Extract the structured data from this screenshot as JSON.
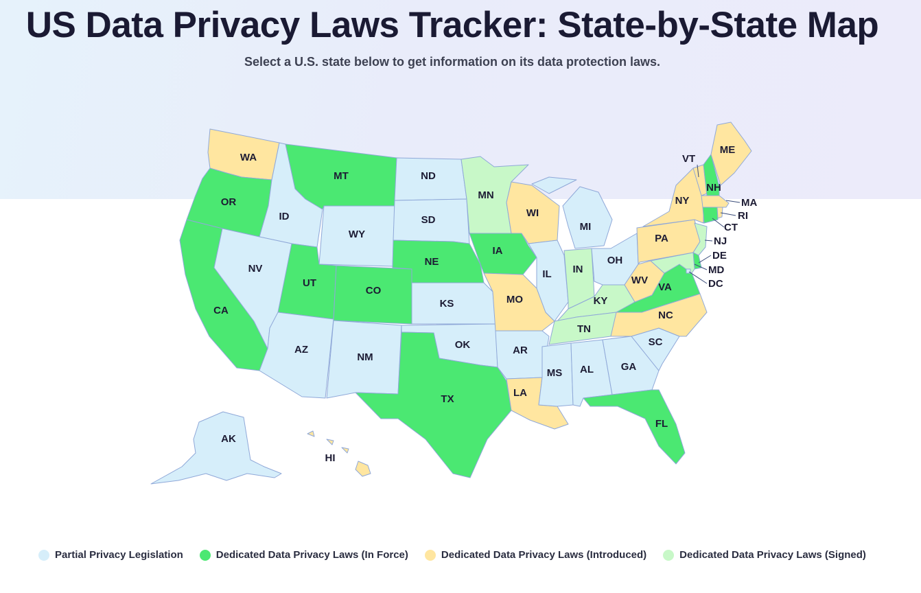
{
  "page": {
    "title": "US Data Privacy Laws Tracker: State-by-State Map",
    "subtitle": "Select a U.S. state below to get information on its data protection laws."
  },
  "colors": {
    "partial": "#d6eefa",
    "in_force": "#4be872",
    "introduced": "#ffe6a0",
    "signed": "#c8f8c8",
    "border": "#8fa8d8"
  },
  "legend": [
    {
      "key": "partial",
      "label": "Partial Privacy Legislation"
    },
    {
      "key": "in_force",
      "label": "Dedicated Data Privacy Laws (In Force)"
    },
    {
      "key": "introduced",
      "label": "Dedicated Data Privacy Laws (Introduced)"
    },
    {
      "key": "signed",
      "label": "Dedicated Data Privacy Laws (Signed)"
    }
  ],
  "states": {
    "WA": "introduced",
    "OR": "in_force",
    "CA": "in_force",
    "NV": "partial",
    "ID": "partial",
    "MT": "in_force",
    "WY": "partial",
    "UT": "in_force",
    "CO": "in_force",
    "AZ": "partial",
    "NM": "partial",
    "ND": "partial",
    "SD": "partial",
    "NE": "in_force",
    "KS": "partial",
    "OK": "partial",
    "TX": "in_force",
    "MN": "signed",
    "IA": "in_force",
    "MO": "introduced",
    "AR": "partial",
    "LA": "introduced",
    "WI": "introduced",
    "IL": "partial",
    "MI": "partial",
    "IN": "signed",
    "OH": "partial",
    "KY": "signed",
    "TN": "signed",
    "MS": "partial",
    "AL": "partial",
    "GA": "partial",
    "FL": "in_force",
    "SC": "partial",
    "NC": "introduced",
    "VA": "in_force",
    "WV": "introduced",
    "PA": "introduced",
    "NY": "introduced",
    "VT": "introduced",
    "NH": "in_force",
    "ME": "introduced",
    "MA": "introduced",
    "RI": "introduced",
    "CT": "in_force",
    "NJ": "signed",
    "DE": "in_force",
    "MD": "signed",
    "DC": "partial",
    "AK": "partial",
    "HI": "introduced"
  }
}
